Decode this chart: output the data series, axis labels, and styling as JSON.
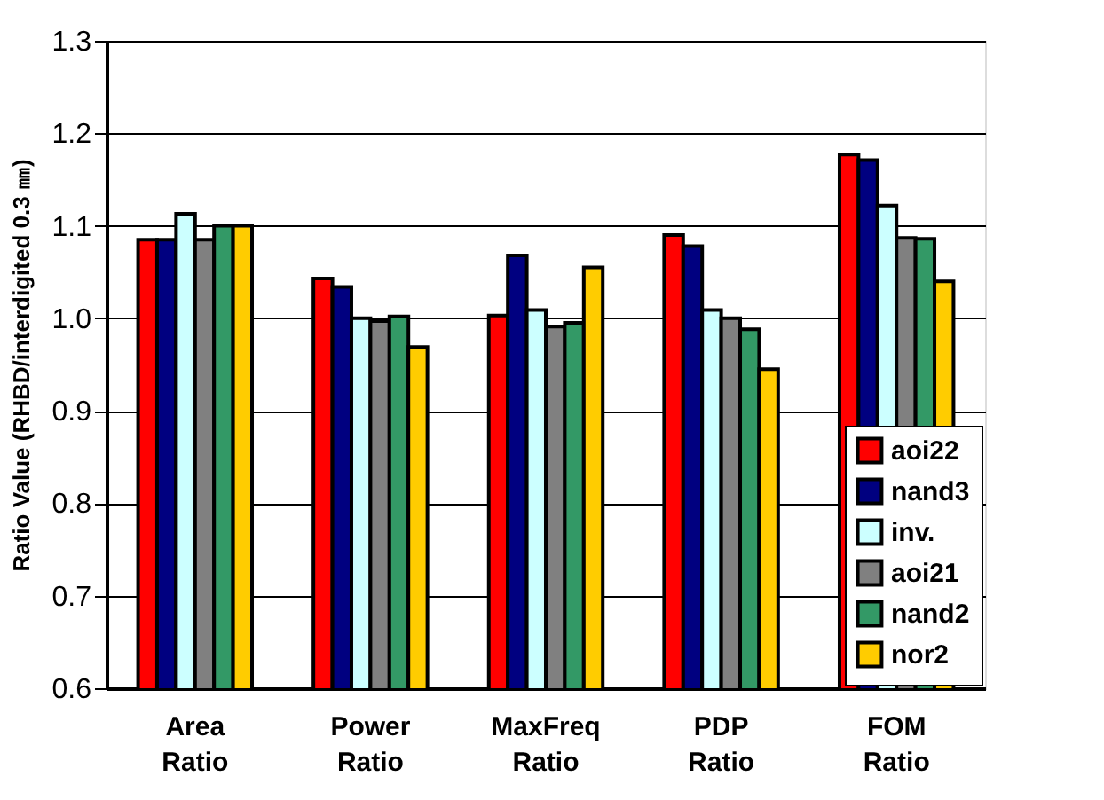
{
  "chart_data": {
    "type": "bar",
    "ylabel": "Ratio Value (RHBD/interdigited 0.3 ㎜)",
    "categories": [
      "Area\nRatio",
      "Power\nRatio",
      "MaxFreq\nRatio",
      "PDP\nRatio",
      "FOM\nRatio"
    ],
    "series": [
      {
        "name": "aoi22",
        "color": "#ff0000",
        "values": [
          1.085,
          1.043,
          1.003,
          1.09,
          1.177
        ]
      },
      {
        "name": "nand3",
        "color": "#000080",
        "values": [
          1.085,
          1.034,
          1.068,
          1.078,
          1.171
        ]
      },
      {
        "name": "inv.",
        "color": "#ccffff",
        "values": [
          1.113,
          1.0,
          1.009,
          1.009,
          1.122
        ]
      },
      {
        "name": "aoi21",
        "color": "#808080",
        "values": [
          1.085,
          0.997,
          0.991,
          1.0,
          1.087
        ]
      },
      {
        "name": "nand2",
        "color": "#339966",
        "values": [
          1.1,
          1.002,
          0.995,
          0.988,
          1.086
        ]
      },
      {
        "name": "nor2",
        "color": "#ffcc00",
        "values": [
          1.1,
          0.969,
          1.055,
          0.945,
          1.04
        ]
      }
    ],
    "ylim": [
      0.6,
      1.3
    ],
    "yticks": [
      {
        "value": 0.6,
        "label": "0.6"
      },
      {
        "value": 0.7,
        "label": "0.7"
      },
      {
        "value": 0.8,
        "label": "0.8"
      },
      {
        "value": 0.9,
        "label": "0.9"
      },
      {
        "value": 1.0,
        "label": "1.0"
      },
      {
        "value": 1.1,
        "label": "1.1"
      },
      {
        "value": 1.2,
        "label": "1.2"
      },
      {
        "value": 1.3,
        "label": "1.3"
      }
    ],
    "grid": "y",
    "legend": "bottom right"
  }
}
